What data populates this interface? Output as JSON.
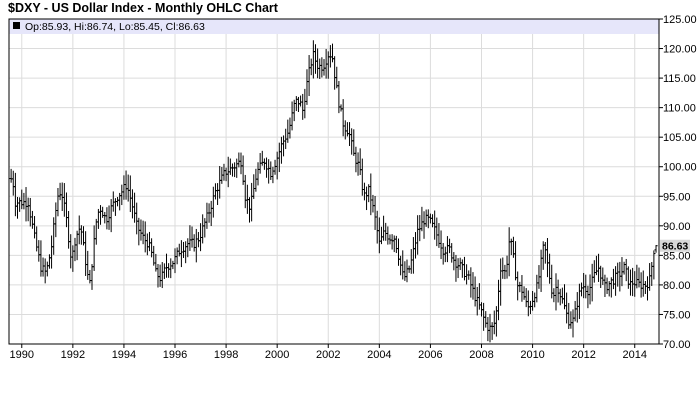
{
  "title": "$DXY - US Dollar Index - Monthly OHLC Chart",
  "legend": {
    "text": "Op:85.93, Hi:86.74, Lo:85.45, Cl:86.63"
  },
  "last_price_label": "86.63",
  "colors": {
    "bar": "#000000",
    "legend_band": "#e6e6fa",
    "grid": "#dcdcdc",
    "frame": "#000000",
    "last_label_bg": "#d8d8d8"
  },
  "chart_data": {
    "type": "ohlc",
    "frequency": "monthly",
    "title": "$DXY - US Dollar Index - Monthly OHLC Chart",
    "ylim": [
      70,
      125
    ],
    "y_ticks": [
      "70.00",
      "75.00",
      "80.00",
      "85.00",
      "90.00",
      "95.00",
      "100.00",
      "105.00",
      "110.00",
      "115.00",
      "120.00",
      "125.00"
    ],
    "y_tick_values": [
      70,
      75,
      80,
      85,
      90,
      95,
      100,
      105,
      110,
      115,
      120,
      125
    ],
    "x_ticks": [
      "1990",
      "1992",
      "1994",
      "1996",
      "1998",
      "2000",
      "2002",
      "2004",
      "2006",
      "2008",
      "2010",
      "2012",
      "2014"
    ],
    "x_tick_values": [
      1990,
      1992,
      1994,
      1996,
      1998,
      2000,
      2002,
      2004,
      2006,
      2008,
      2010,
      2012,
      2014
    ],
    "xlim": [
      1989.5,
      2014.95
    ],
    "grid": true,
    "y_axis_side": "right",
    "last_bar": {
      "open": 85.93,
      "high": 86.74,
      "low": 85.45,
      "close": 86.63
    },
    "anchor_closes": [
      [
        1989.58,
        98
      ],
      [
        1989.67,
        97
      ],
      [
        1989.75,
        94
      ],
      [
        1989.92,
        94
      ],
      [
        1990.25,
        94
      ],
      [
        1990.5,
        88
      ],
      [
        1990.75,
        83
      ],
      [
        1990.95,
        82
      ],
      [
        1991.15,
        86
      ],
      [
        1991.4,
        95
      ],
      [
        1991.55,
        96
      ],
      [
        1991.75,
        91
      ],
      [
        1991.95,
        84
      ],
      [
        1992.1,
        88
      ],
      [
        1992.3,
        90
      ],
      [
        1992.5,
        84
      ],
      [
        1992.65,
        79.5
      ],
      [
        1992.85,
        88
      ],
      [
        1992.95,
        92
      ],
      [
        1993.1,
        93
      ],
      [
        1993.3,
        91
      ],
      [
        1993.5,
        93
      ],
      [
        1993.75,
        95
      ],
      [
        1993.95,
        96
      ],
      [
        1994.1,
        97
      ],
      [
        1994.3,
        94
      ],
      [
        1994.5,
        90
      ],
      [
        1994.75,
        88
      ],
      [
        1994.95,
        87
      ],
      [
        1995.1,
        85
      ],
      [
        1995.25,
        82
      ],
      [
        1995.45,
        81
      ],
      [
        1995.65,
        83
      ],
      [
        1995.95,
        84
      ],
      [
        1996.2,
        86
      ],
      [
        1996.5,
        87
      ],
      [
        1996.75,
        87
      ],
      [
        1996.95,
        88
      ],
      [
        1997.3,
        92
      ],
      [
        1997.6,
        96
      ],
      [
        1997.95,
        99
      ],
      [
        1998.3,
        100
      ],
      [
        1998.6,
        101
      ],
      [
        1998.75,
        95
      ],
      [
        1998.95,
        93
      ],
      [
        1999.2,
        99
      ],
      [
        1999.5,
        101
      ],
      [
        1999.75,
        99
      ],
      [
        1999.95,
        101
      ],
      [
        2000.2,
        104
      ],
      [
        2000.45,
        106
      ],
      [
        2000.7,
        111
      ],
      [
        2000.9,
        111
      ],
      [
        2000.98,
        109
      ],
      [
        2001.2,
        115
      ],
      [
        2001.4,
        119
      ],
      [
        2001.6,
        117
      ],
      [
        2001.8,
        117
      ],
      [
        2002.0,
        119
      ],
      [
        2002.15,
        119
      ],
      [
        2002.3,
        114
      ],
      [
        2002.45,
        110
      ],
      [
        2002.6,
        107
      ],
      [
        2002.8,
        106
      ],
      [
        2003.0,
        102
      ],
      [
        2003.2,
        100
      ],
      [
        2003.4,
        95
      ],
      [
        2003.6,
        96
      ],
      [
        2003.8,
        92
      ],
      [
        2004.0,
        87
      ],
      [
        2004.2,
        89
      ],
      [
        2004.4,
        88
      ],
      [
        2004.6,
        88
      ],
      [
        2004.8,
        84
      ],
      [
        2004.95,
        81
      ],
      [
        2005.2,
        83
      ],
      [
        2005.5,
        89
      ],
      [
        2005.75,
        91
      ],
      [
        2005.95,
        91
      ],
      [
        2006.2,
        89
      ],
      [
        2006.5,
        86
      ],
      [
        2006.75,
        86
      ],
      [
        2006.95,
        84
      ],
      [
        2007.2,
        83
      ],
      [
        2007.5,
        81
      ],
      [
        2007.75,
        78
      ],
      [
        2007.95,
        76
      ],
      [
        2008.2,
        73
      ],
      [
        2008.4,
        72.5
      ],
      [
        2008.55,
        74
      ],
      [
        2008.75,
        83
      ],
      [
        2008.95,
        82
      ],
      [
        2009.1,
        88
      ],
      [
        2009.2,
        86
      ],
      [
        2009.4,
        80
      ],
      [
        2009.6,
        79
      ],
      [
        2009.8,
        76
      ],
      [
        2009.95,
        77
      ],
      [
        2010.2,
        80
      ],
      [
        2010.45,
        87
      ],
      [
        2010.6,
        83
      ],
      [
        2010.8,
        78
      ],
      [
        2010.95,
        80
      ],
      [
        2011.2,
        77
      ],
      [
        2011.4,
        74
      ],
      [
        2011.6,
        74
      ],
      [
        2011.8,
        78
      ],
      [
        2011.95,
        80
      ],
      [
        2012.2,
        79
      ],
      [
        2012.45,
        82
      ],
      [
        2012.6,
        83
      ],
      [
        2012.8,
        79.5
      ],
      [
        2012.95,
        80
      ],
      [
        2013.2,
        81
      ],
      [
        2013.45,
        82
      ],
      [
        2013.6,
        83
      ],
      [
        2013.8,
        80
      ],
      [
        2013.95,
        80.5
      ],
      [
        2014.2,
        80
      ],
      [
        2014.45,
        80
      ],
      [
        2014.6,
        81
      ],
      [
        2014.75,
        85.93
      ],
      [
        2014.85,
        86.63
      ]
    ]
  }
}
